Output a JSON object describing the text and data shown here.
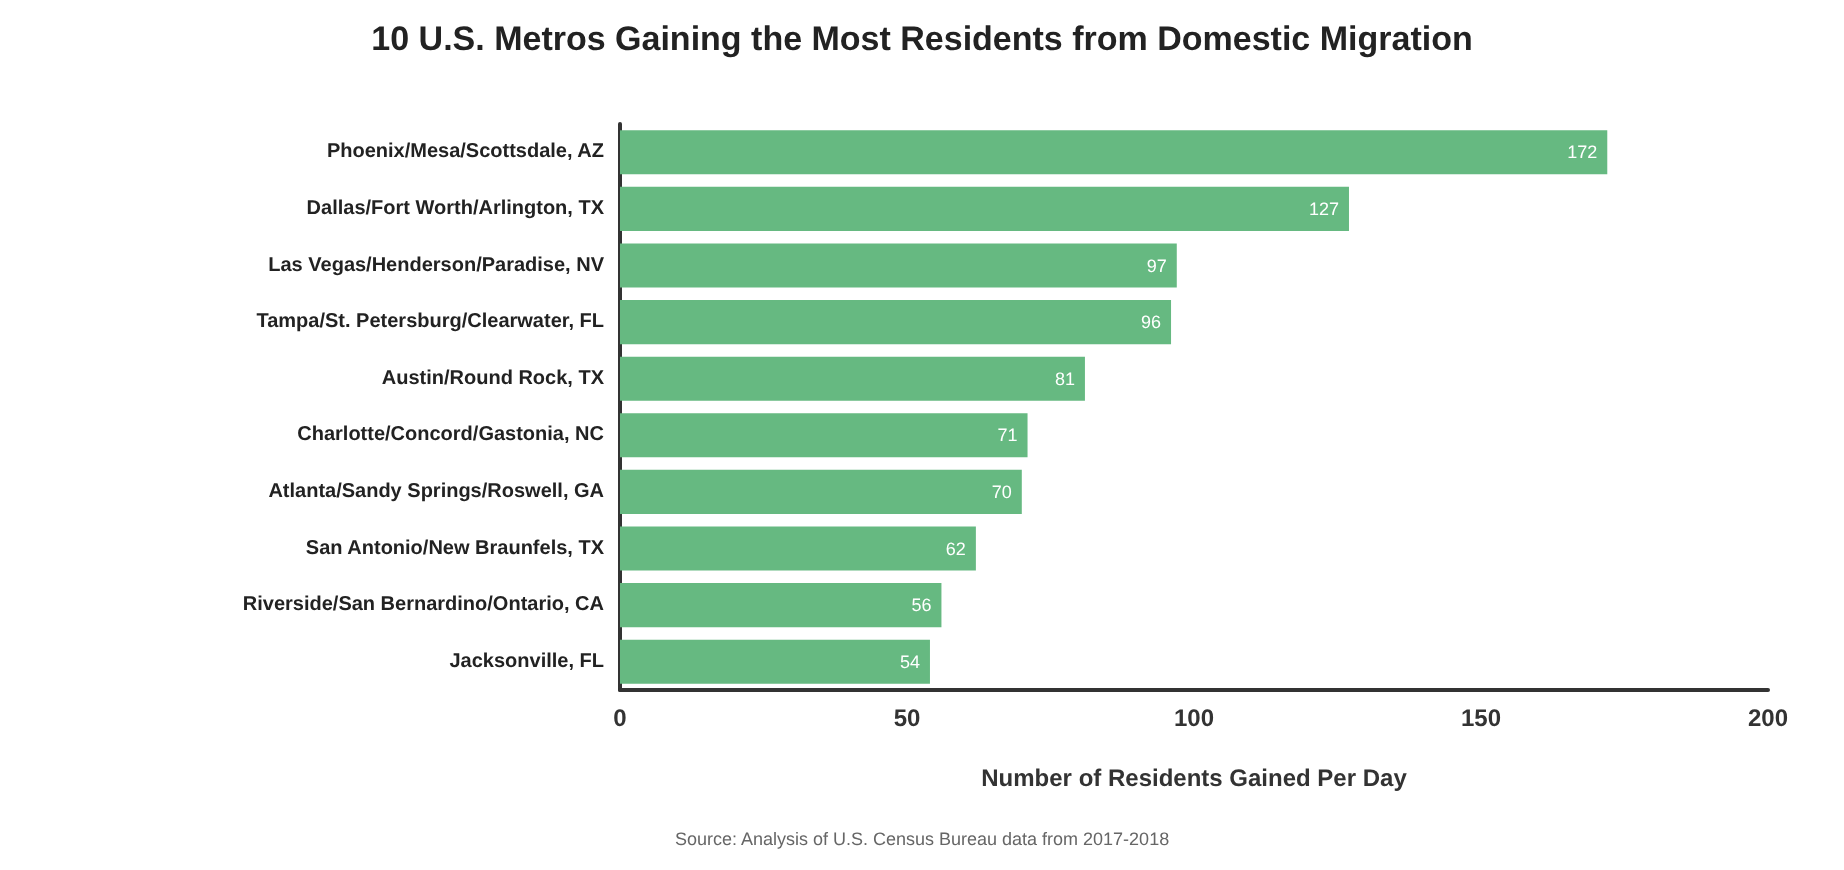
{
  "chart_data": {
    "type": "bar",
    "orientation": "horizontal",
    "title": "10 U.S. Metros Gaining the Most Residents from Domestic Migration",
    "xlabel": "Number of Residents Gained Per Day",
    "categories": [
      "Phoenix/Mesa/Scottsdale, AZ",
      "Dallas/Fort Worth/Arlington, TX",
      "Las Vegas/Henderson/Paradise, NV",
      "Tampa/St. Petersburg/Clearwater, FL",
      "Austin/Round Rock, TX",
      "Charlotte/Concord/Gastonia, NC",
      "Atlanta/Sandy Springs/Roswell, GA",
      "San Antonio/New Braunfels, TX",
      "Riverside/San Bernardino/Ontario, CA",
      "Jacksonville, FL"
    ],
    "values": [
      172,
      127,
      97,
      96,
      81,
      71,
      70,
      62,
      56,
      54
    ],
    "color": "#66b981",
    "xlim": [
      0,
      200
    ],
    "xticks": [
      0,
      50,
      100,
      150,
      200
    ],
    "grid": false,
    "data_labels": true,
    "annotations": [
      "Source: Analysis of U.S. Census Bureau data from 2017-2018"
    ]
  }
}
